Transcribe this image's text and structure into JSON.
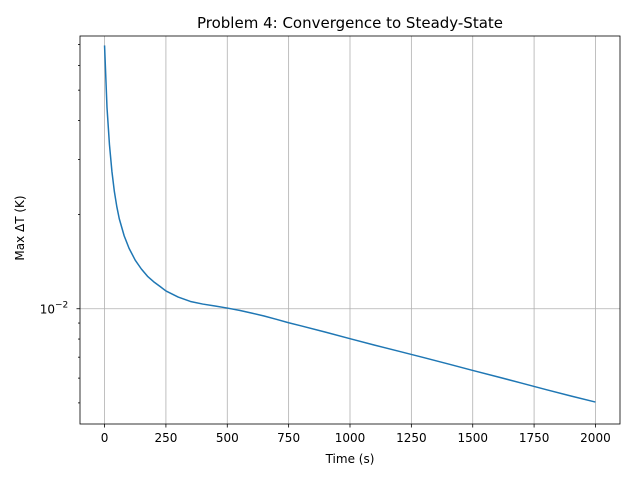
{
  "chart_data": {
    "type": "line",
    "title": "Problem 4: Convergence to Steady-State",
    "xlabel": "Time (s)",
    "ylabel": "Max ΔT (K)",
    "yscale": "log",
    "xlim": [
      -100,
      2100
    ],
    "ylim": [
      0.00428,
      0.0745
    ],
    "grid": true,
    "line_color": "#1f77b4",
    "x_ticks": [
      {
        "value": 0,
        "label": "0"
      },
      {
        "value": 250,
        "label": "250"
      },
      {
        "value": 500,
        "label": "500"
      },
      {
        "value": 750,
        "label": "750"
      },
      {
        "value": 1000,
        "label": "1000"
      },
      {
        "value": 1250,
        "label": "1250"
      },
      {
        "value": 1500,
        "label": "1500"
      },
      {
        "value": 1750,
        "label": "1750"
      },
      {
        "value": 2000,
        "label": "2000"
      }
    ],
    "y_major_ticks": [
      {
        "value": 0.01,
        "base": "10",
        "exponent": "−2"
      }
    ],
    "y_minor_ticks": [
      0.005,
      0.006,
      0.007,
      0.008,
      0.009,
      0.02,
      0.03,
      0.04,
      0.05,
      0.06,
      0.07
    ],
    "series": [
      {
        "x": [
          0,
          10,
          20,
          30,
          40,
          50,
          60,
          80,
          100,
          125,
          150,
          175,
          200,
          225,
          250,
          300,
          350,
          400,
          450,
          500,
          550,
          600,
          650,
          700,
          750,
          800,
          900,
          1000,
          1100,
          1200,
          1300,
          1400,
          1500,
          1600,
          1700,
          1800,
          1900,
          2000
        ],
        "y": [
          0.0695,
          0.044,
          0.0335,
          0.0275,
          0.0237,
          0.0212,
          0.0194,
          0.0171,
          0.0156,
          0.0143,
          0.0134,
          0.0127,
          0.0122,
          0.0118,
          0.0114,
          0.0109,
          0.01055,
          0.01035,
          0.0102,
          0.01005,
          0.00988,
          0.00968,
          0.00948,
          0.00925,
          0.00902,
          0.00882,
          0.00842,
          0.00802,
          0.00765,
          0.00731,
          0.00698,
          0.00666,
          0.00635,
          0.00606,
          0.00578,
          0.00551,
          0.00526,
          0.00503
        ]
      }
    ]
  }
}
